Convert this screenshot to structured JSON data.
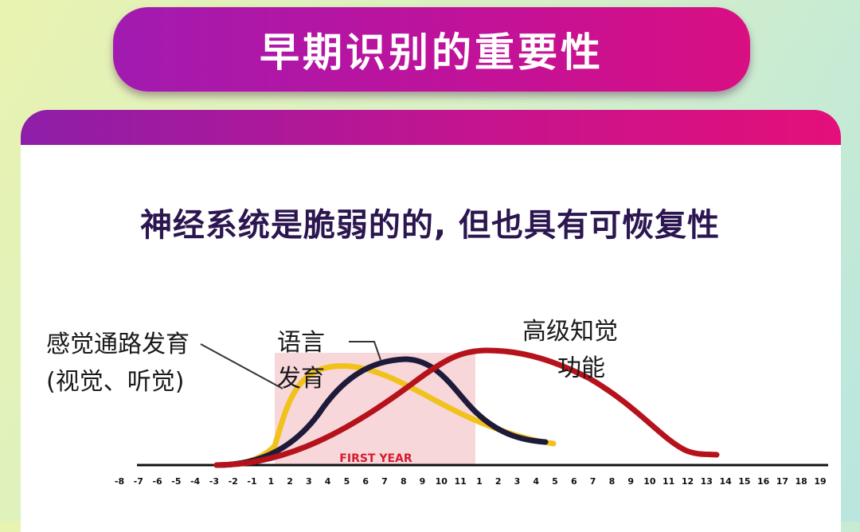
{
  "title": "早期识别的重要性",
  "subtitle": "神经系统是脆弱的的, 但也具有可恢复性",
  "diagram": {
    "first_year_label": "FIRST YEAR",
    "labels": {
      "sensory_line1": "感觉通路发育",
      "sensory_line2": "(视觉、听觉)",
      "language_line1": "语言",
      "language_line2": "发育",
      "higher_line1": "高级知觉",
      "higher_line2": "功能"
    },
    "ticks": [
      "-8",
      "-7",
      "-6",
      "-5",
      "-4",
      "-3",
      "-2",
      "-1",
      "1",
      "2",
      "3",
      "4",
      "5",
      "6",
      "7",
      "8",
      "9",
      "10",
      "11",
      "1",
      "2",
      "3",
      "4",
      "5",
      "6",
      "7",
      "8",
      "9",
      "10",
      "11",
      "12",
      "13",
      "14",
      "15",
      "16",
      "17",
      "18",
      "19"
    ],
    "colors": {
      "sensory": "#f1c21b",
      "language": "#1e1a3a",
      "higher": "#b5121b",
      "first_year_box": "#f7d3d6",
      "first_year_text": "#d31c2e"
    }
  }
}
